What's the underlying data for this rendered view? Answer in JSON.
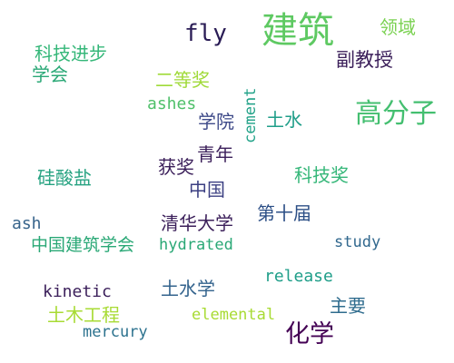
{
  "words": [
    {
      "id": "jianzhu",
      "text": "建筑",
      "color": "#5ec962"
    },
    {
      "id": "fly",
      "text": "fly",
      "color": "#2a1c55"
    },
    {
      "id": "lingyu",
      "text": "领域",
      "color": "#7ad151"
    },
    {
      "id": "kejijinbu",
      "text": "科技进步",
      "color": "#35b779"
    },
    {
      "id": "xuehui",
      "text": "学会",
      "color": "#2aa876"
    },
    {
      "id": "fujiaoshou",
      "text": "副教授",
      "color": "#3b1f5a"
    },
    {
      "id": "erdengjiang",
      "text": "二等奖",
      "color": "#a0da39"
    },
    {
      "id": "ashes",
      "text": "ashes",
      "color": "#4fc06a"
    },
    {
      "id": "cement",
      "text": "cement",
      "color": "#1fa187"
    },
    {
      "id": "gaofenzi",
      "text": "高分子",
      "color": "#44bf70"
    },
    {
      "id": "xueyuan",
      "text": "学院",
      "color": "#3e4a89"
    },
    {
      "id": "tushui",
      "text": "土水",
      "color": "#1f9e89"
    },
    {
      "id": "qingnian",
      "text": "青年",
      "color": "#3b1f5a"
    },
    {
      "id": "huojiang",
      "text": "获奖",
      "color": "#3b1f5a"
    },
    {
      "id": "kejijiang",
      "text": "科技奖",
      "color": "#35b779"
    },
    {
      "id": "guisuanyan",
      "text": "硅酸盐",
      "color": "#26a281"
    },
    {
      "id": "zhongguo",
      "text": "中国",
      "color": "#3b3f82"
    },
    {
      "id": "dishijie",
      "text": "第十届",
      "color": "#2c4f86"
    },
    {
      "id": "ash",
      "text": "ash",
      "color": "#37648b"
    },
    {
      "id": "qinghua",
      "text": "清华大学",
      "color": "#3b1f5a"
    },
    {
      "id": "zgjzxh",
      "text": "中国建筑学会",
      "color": "#2aa876"
    },
    {
      "id": "hydrated",
      "text": "hydrated",
      "color": "#2aa876"
    },
    {
      "id": "study",
      "text": "study",
      "color": "#31688e"
    },
    {
      "id": "release",
      "text": "release",
      "color": "#1f9e89"
    },
    {
      "id": "kinetic",
      "text": "kinetic",
      "color": "#3b1f5a"
    },
    {
      "id": "tushuixue",
      "text": "土水学",
      "color": "#33638d"
    },
    {
      "id": "zhuyao",
      "text": "主要",
      "color": "#2f6c8e"
    },
    {
      "id": "tumugongcheng",
      "text": "土木工程",
      "color": "#a8db34"
    },
    {
      "id": "elemental",
      "text": "elemental",
      "color": "#a8db34"
    },
    {
      "id": "mercury",
      "text": "mercury",
      "color": "#2c728e"
    },
    {
      "id": "huaxue",
      "text": "化学",
      "color": "#440154"
    }
  ]
}
